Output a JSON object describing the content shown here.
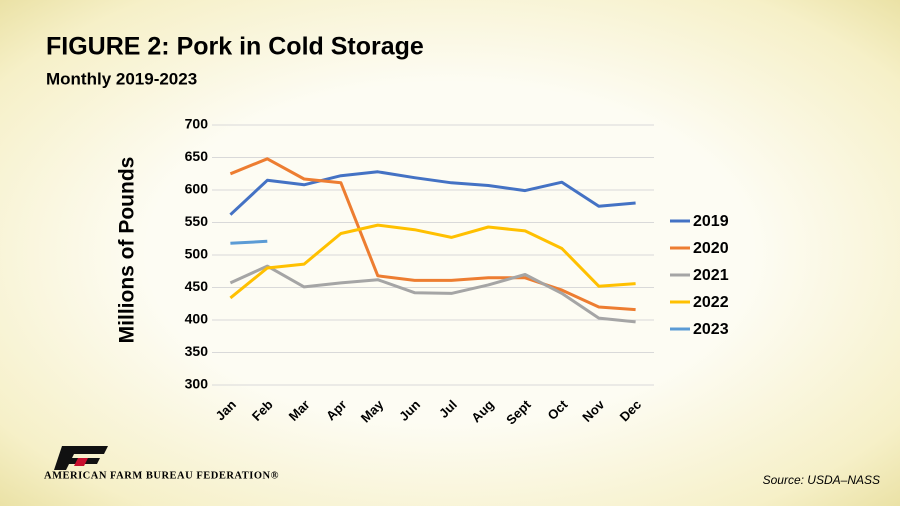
{
  "chart_data": {
    "type": "line",
    "title": "FIGURE  2: Pork in Cold Storage",
    "subtitle": "Monthly 2019-2023",
    "y_label": "Millions of Pounds",
    "source": "Source: USDA–NASS",
    "organization": "AMERICAN FARM BUREAU FEDERATION®",
    "categories": [
      "Jan",
      "Feb",
      "Mar",
      "Apr",
      "May",
      "Jun",
      "Jul",
      "Aug",
      "Sept",
      "Oct",
      "Nov",
      "Dec"
    ],
    "series": [
      {
        "name": "2019",
        "color": "#4472c4",
        "values": [
          562,
          615,
          608,
          622,
          628,
          619,
          611,
          607,
          599,
          612,
          575,
          580
        ]
      },
      {
        "name": "2020",
        "color": "#ed7d31",
        "values": [
          625,
          648,
          617,
          611,
          468,
          461,
          461,
          465,
          465,
          446,
          420,
          416
        ]
      },
      {
        "name": "2021",
        "color": "#a5a5a5",
        "values": [
          457,
          483,
          451,
          457,
          462,
          442,
          441,
          454,
          470,
          441,
          403,
          397
        ]
      },
      {
        "name": "2022",
        "color": "#ffc000",
        "values": [
          434,
          480,
          486,
          533,
          546,
          539,
          527,
          543,
          537,
          510,
          452,
          456
        ]
      },
      {
        "name": "2023",
        "color": "#5b9bd5",
        "values": [
          518,
          521,
          null,
          null,
          null,
          null,
          null,
          null,
          null,
          null,
          null,
          null
        ]
      }
    ],
    "ylim": [
      300,
      700
    ],
    "yticks": [
      300,
      350,
      400,
      450,
      500,
      550,
      600,
      650,
      700
    ],
    "grid": true,
    "legend": "right"
  }
}
